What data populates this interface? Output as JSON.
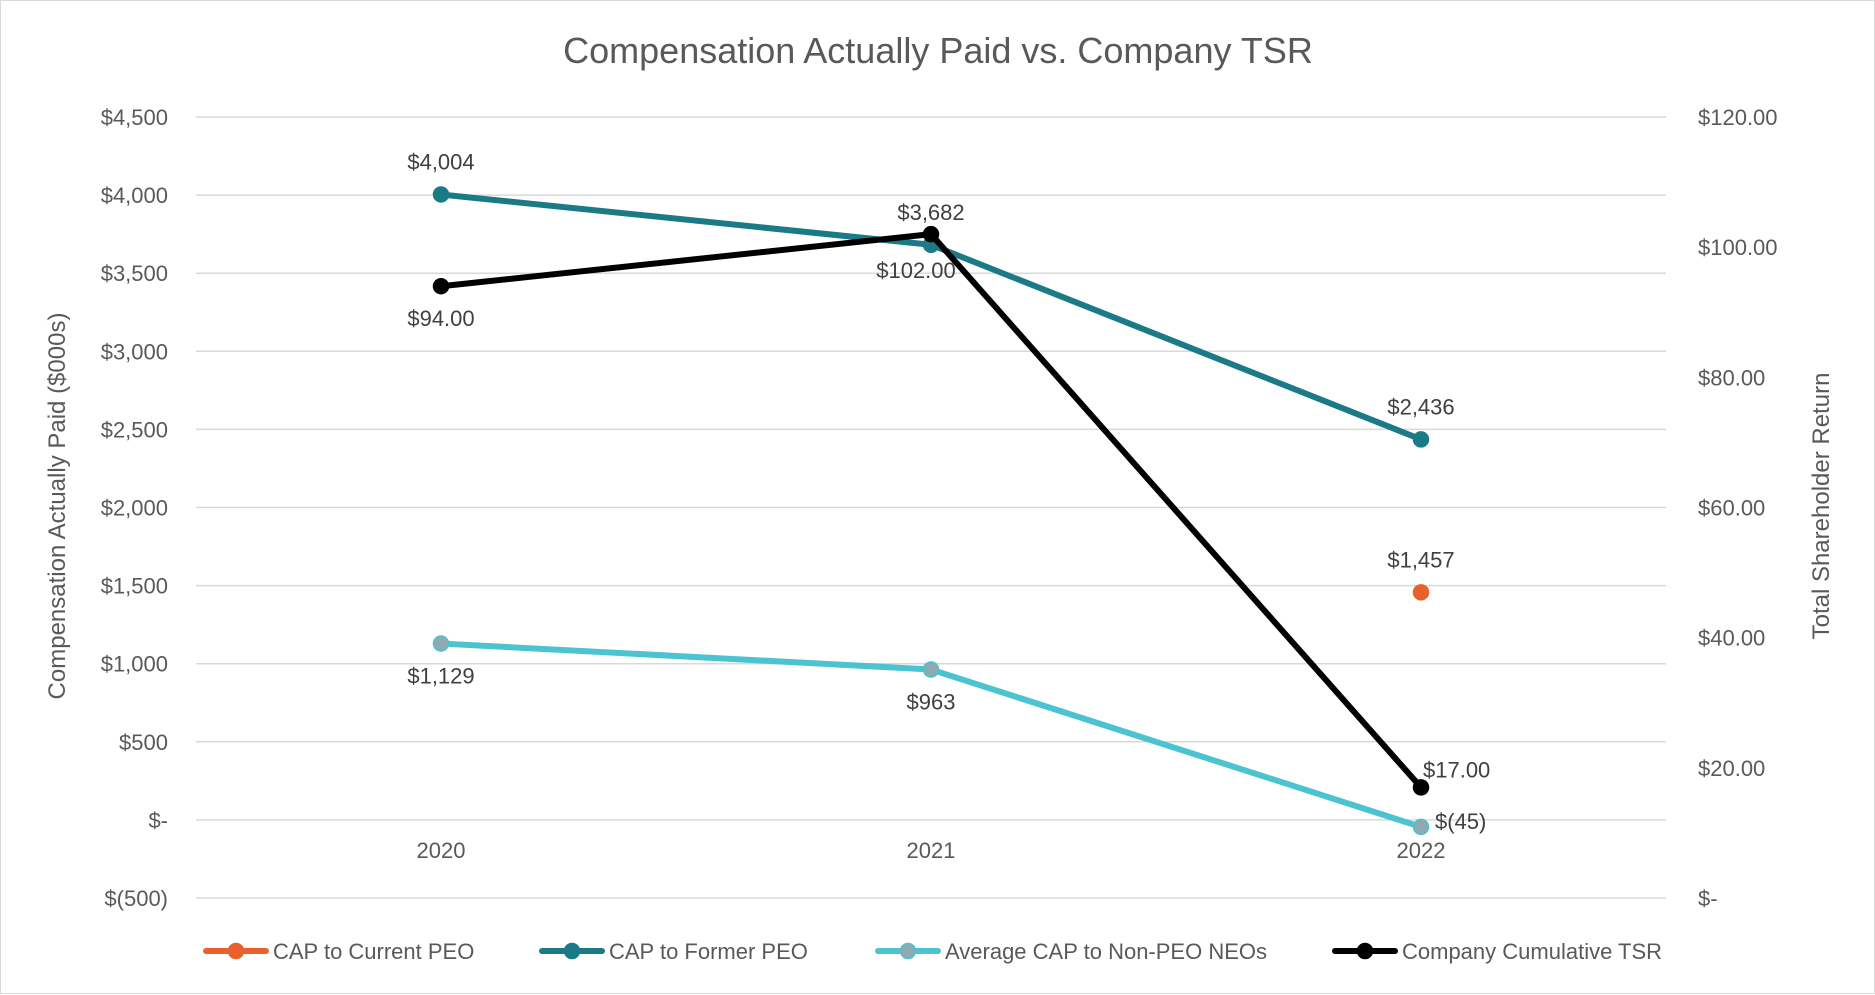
{
  "chart_data": {
    "type": "line",
    "title": "Compensation Actually Paid vs. Company TSR",
    "categories": [
      "2020",
      "2021",
      "2022"
    ],
    "y_left": {
      "label": "Compensation Actually Paid ($000s)",
      "min": -500,
      "max": 4500,
      "step": 500,
      "tick_labels": [
        "$(500)",
        "$-",
        "$500",
        "$1,000",
        "$1,500",
        "$2,000",
        "$2,500",
        "$3,000",
        "$3,500",
        "$4,000",
        "$4,500"
      ]
    },
    "y_right": {
      "label": "Total Shareholder Return",
      "min": 0,
      "max": 120,
      "step": 20,
      "tick_labels": [
        "$-",
        "$20.00",
        "$40.00",
        "$60.00",
        "$80.00",
        "$100.00",
        "$120.00"
      ]
    },
    "series": [
      {
        "name": "CAP to Current PEO",
        "axis": "left",
        "color": "#E8602C",
        "marker_color": "#E8602C",
        "line": false,
        "values": [
          null,
          null,
          1457
        ],
        "labels": [
          null,
          null,
          "$1,457"
        ],
        "label_pos": [
          null,
          null,
          "above"
        ]
      },
      {
        "name": "CAP to Former PEO",
        "axis": "left",
        "color": "#1A7A86",
        "marker_color": "#1A7A86",
        "line": true,
        "values": [
          4004,
          3682,
          2436
        ],
        "labels": [
          "$4,004",
          "$3,682",
          "$2,436"
        ],
        "label_pos": [
          "above",
          "above",
          "above"
        ]
      },
      {
        "name": "Average CAP to Non-PEO NEOs",
        "axis": "left",
        "color": "#4BC3D0",
        "marker_color": "#8FA9B0",
        "line": true,
        "values": [
          1129,
          963,
          -45
        ],
        "labels": [
          "$1,129",
          "$963",
          "$(45)"
        ],
        "label_pos": [
          "below",
          "below",
          "right"
        ]
      },
      {
        "name": "Company Cumulative TSR",
        "axis": "right",
        "color": "#000000",
        "marker_color": "#000000",
        "line": true,
        "values": [
          94,
          102,
          17
        ],
        "labels": [
          "$94.00",
          "$102.00",
          "$17.00"
        ],
        "label_pos": [
          "below",
          "below-left",
          "above-right"
        ]
      }
    ]
  }
}
